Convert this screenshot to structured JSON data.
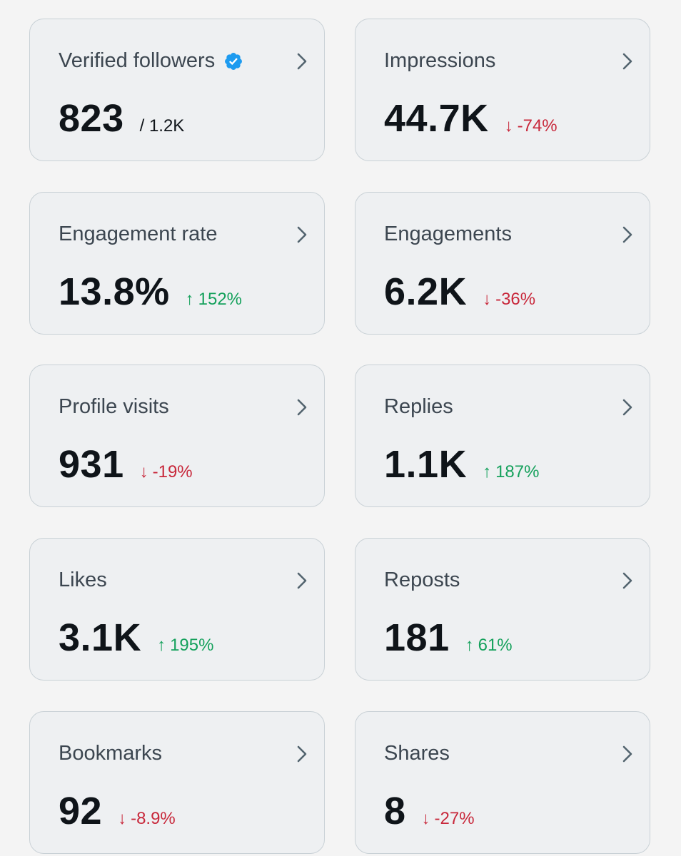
{
  "colors": {
    "up": "#15a15c",
    "down": "#c8283b",
    "verified": "#1d9bf0"
  },
  "cards": [
    {
      "id": "verified-followers",
      "title": "Verified followers",
      "value": "823",
      "total": "/ 1.2K",
      "verified_icon": "verified-badge-icon"
    },
    {
      "id": "impressions",
      "title": "Impressions",
      "value": "44.7K",
      "direction": "down",
      "arrow": "↓",
      "change": "-74%"
    },
    {
      "id": "engagement-rate",
      "title": "Engagement rate",
      "value": "13.8%",
      "direction": "up",
      "arrow": "↑",
      "change": "152%"
    },
    {
      "id": "engagements",
      "title": "Engagements",
      "value": "6.2K",
      "direction": "down",
      "arrow": "↓",
      "change": "-36%"
    },
    {
      "id": "profile-visits",
      "title": "Profile visits",
      "value": "931",
      "direction": "down",
      "arrow": "↓",
      "change": "-19%"
    },
    {
      "id": "replies",
      "title": "Replies",
      "value": "1.1K",
      "direction": "up",
      "arrow": "↑",
      "change": "187%"
    },
    {
      "id": "likes",
      "title": "Likes",
      "value": "3.1K",
      "direction": "up",
      "arrow": "↑",
      "change": "195%"
    },
    {
      "id": "reposts",
      "title": "Reposts",
      "value": "181",
      "direction": "up",
      "arrow": "↑",
      "change": "61%"
    },
    {
      "id": "bookmarks",
      "title": "Bookmarks",
      "value": "92",
      "direction": "down",
      "arrow": "↓",
      "change": "-8.9%"
    },
    {
      "id": "shares",
      "title": "Shares",
      "value": "8",
      "direction": "down",
      "arrow": "↓",
      "change": "-27%"
    }
  ]
}
